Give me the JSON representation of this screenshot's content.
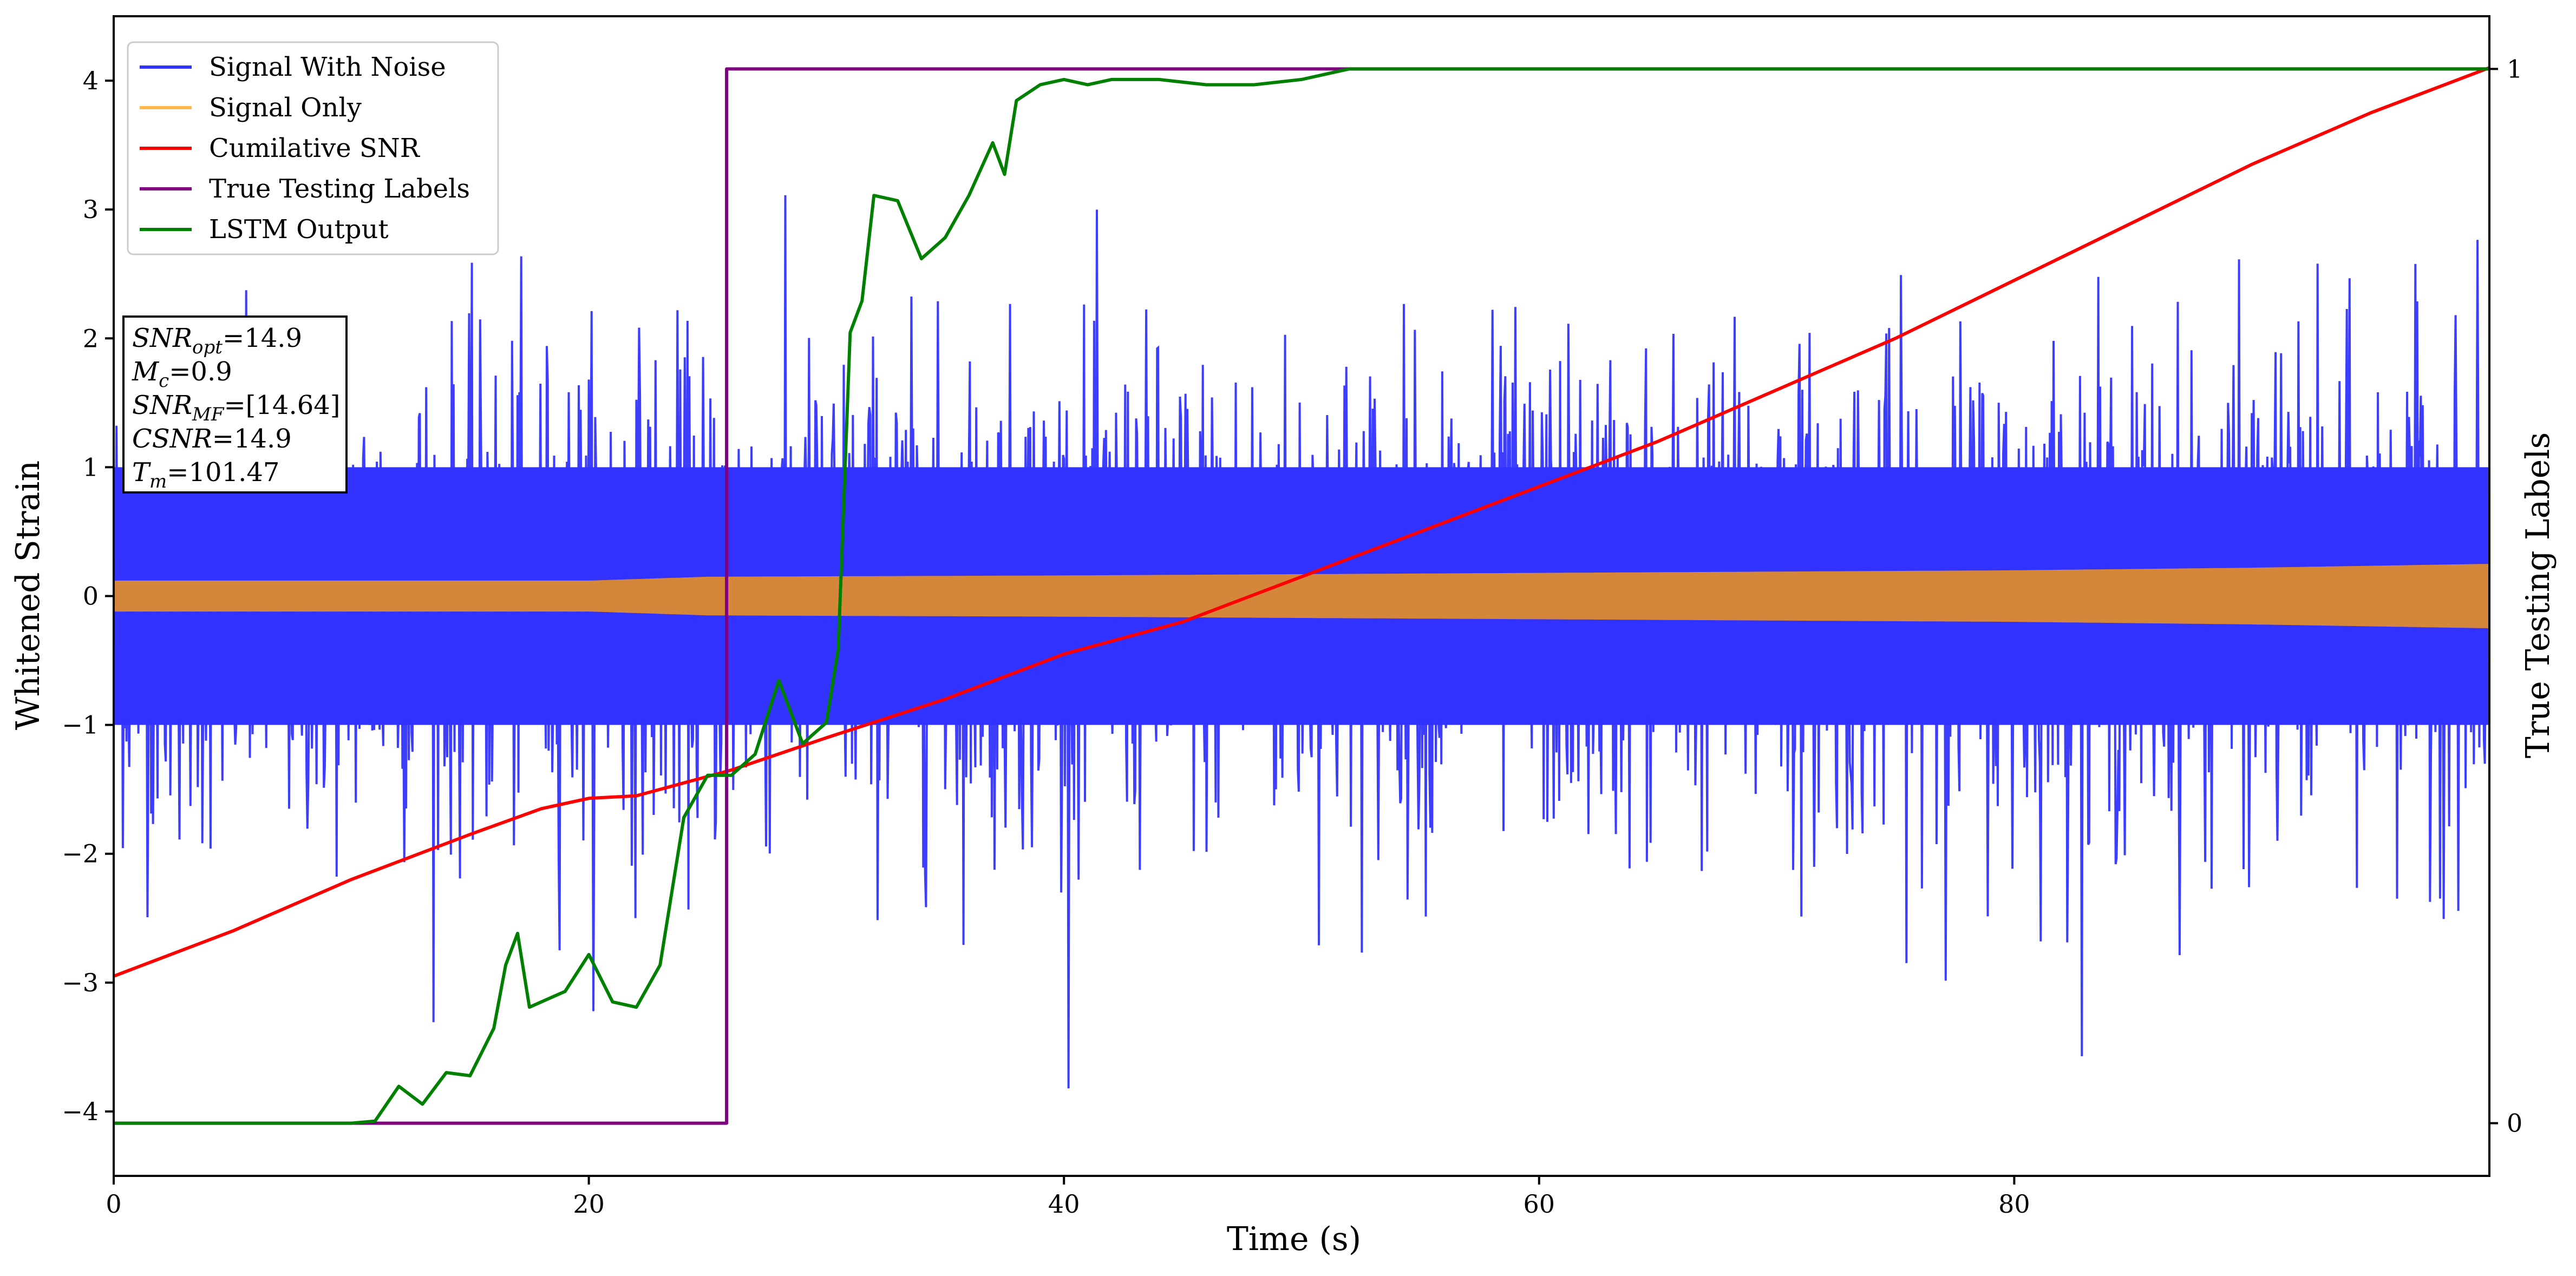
{
  "chart_data": {
    "type": "line",
    "xlabel": "Time (s)",
    "ylabel": "Whitened Strain",
    "ylabel_right": "True Testing Labels",
    "xlim": [
      0,
      100
    ],
    "ylim": [
      -4.5,
      4.5
    ],
    "ylim_right": [
      -0.05,
      1.05
    ],
    "x_ticks": [
      0,
      20,
      40,
      60,
      80
    ],
    "y_ticks": [
      -4,
      -3,
      -2,
      -1,
      0,
      1,
      2,
      3,
      4
    ],
    "y_right_ticks": [
      0,
      1
    ],
    "grid": false,
    "legend_position": "top-left",
    "legend": [
      {
        "label": "Signal With Noise",
        "color": "#3333ff"
      },
      {
        "label": "Signal Only",
        "color": "#ffb84d"
      },
      {
        "label": "Cumilative SNR",
        "color": "#ff0000"
      },
      {
        "label": "True Testing Labels",
        "color": "#800080"
      },
      {
        "label": "LSTM Output",
        "color": "#008000"
      }
    ],
    "annotation": {
      "lines": [
        {
          "base": "SNR",
          "sub": "opt",
          "value": "=14.9"
        },
        {
          "base": "M",
          "sub": "c",
          "value": "=0.9"
        },
        {
          "base": "SNR",
          "sub": "MF",
          "value": "=[14.64]"
        },
        {
          "base": "CSNR",
          "sub": "",
          "value": "=14.9"
        },
        {
          "base": "T",
          "sub": "m",
          "value": "=101.47"
        }
      ]
    },
    "series": [
      {
        "name": "Signal With Noise",
        "color": "#3333ff",
        "axis": "left",
        "noise_band": {
          "core_low": -1.0,
          "core_high": 1.0,
          "peak_low": -4.1,
          "peak_high": 3.3
        }
      },
      {
        "name": "Signal Only",
        "color": "#d4873a",
        "axis": "left",
        "envelope": {
          "x": [
            0,
            20,
            25,
            40,
            60,
            80,
            90,
            100
          ],
          "amplitude": [
            0.12,
            0.12,
            0.15,
            0.16,
            0.18,
            0.2,
            0.22,
            0.25
          ]
        }
      },
      {
        "name": "Cumilative SNR",
        "color": "#ff0000",
        "axis": "left",
        "x": [
          0,
          5,
          10,
          15,
          18,
          20,
          22,
          24,
          26,
          30,
          35,
          40,
          45,
          50,
          55,
          60,
          65,
          70,
          75,
          80,
          85,
          90,
          95,
          100
        ],
        "y": [
          -2.95,
          -2.6,
          -2.2,
          -1.85,
          -1.65,
          -1.57,
          -1.55,
          -1.45,
          -1.35,
          -1.1,
          -0.8,
          -0.45,
          -0.2,
          0.15,
          0.5,
          0.85,
          1.2,
          1.6,
          2.0,
          2.45,
          2.9,
          3.35,
          3.75,
          4.1
        ]
      },
      {
        "name": "True Testing Labels",
        "color": "#800080",
        "axis": "right",
        "x": [
          0,
          25.8,
          25.8,
          100
        ],
        "y": [
          0,
          0,
          1,
          1
        ]
      },
      {
        "name": "LSTM Output",
        "color": "#008000",
        "axis": "right",
        "x": [
          0,
          10,
          11,
          12,
          13,
          14,
          15,
          16,
          16.5,
          17,
          17.5,
          18,
          19,
          20,
          21,
          22,
          23,
          24,
          25,
          26,
          27,
          28,
          29,
          30,
          30.5,
          31,
          31.5,
          32,
          33,
          34,
          35,
          36,
          37,
          37.5,
          38,
          39,
          40,
          41,
          42,
          44,
          46,
          48,
          50,
          52,
          55,
          60,
          70,
          80,
          90,
          100
        ],
        "y": [
          0,
          0,
          0.002,
          0.035,
          0.018,
          0.048,
          0.045,
          0.09,
          0.15,
          0.18,
          0.11,
          0.115,
          0.125,
          0.16,
          0.115,
          0.11,
          0.15,
          0.29,
          0.33,
          0.33,
          0.35,
          0.42,
          0.36,
          0.38,
          0.45,
          0.75,
          0.78,
          0.88,
          0.875,
          0.82,
          0.84,
          0.88,
          0.93,
          0.9,
          0.97,
          0.985,
          0.99,
          0.985,
          0.99,
          0.99,
          0.985,
          0.985,
          0.99,
          1.0,
          1.0,
          1.0,
          1.0,
          1.0,
          1.0,
          1.0
        ]
      }
    ]
  }
}
